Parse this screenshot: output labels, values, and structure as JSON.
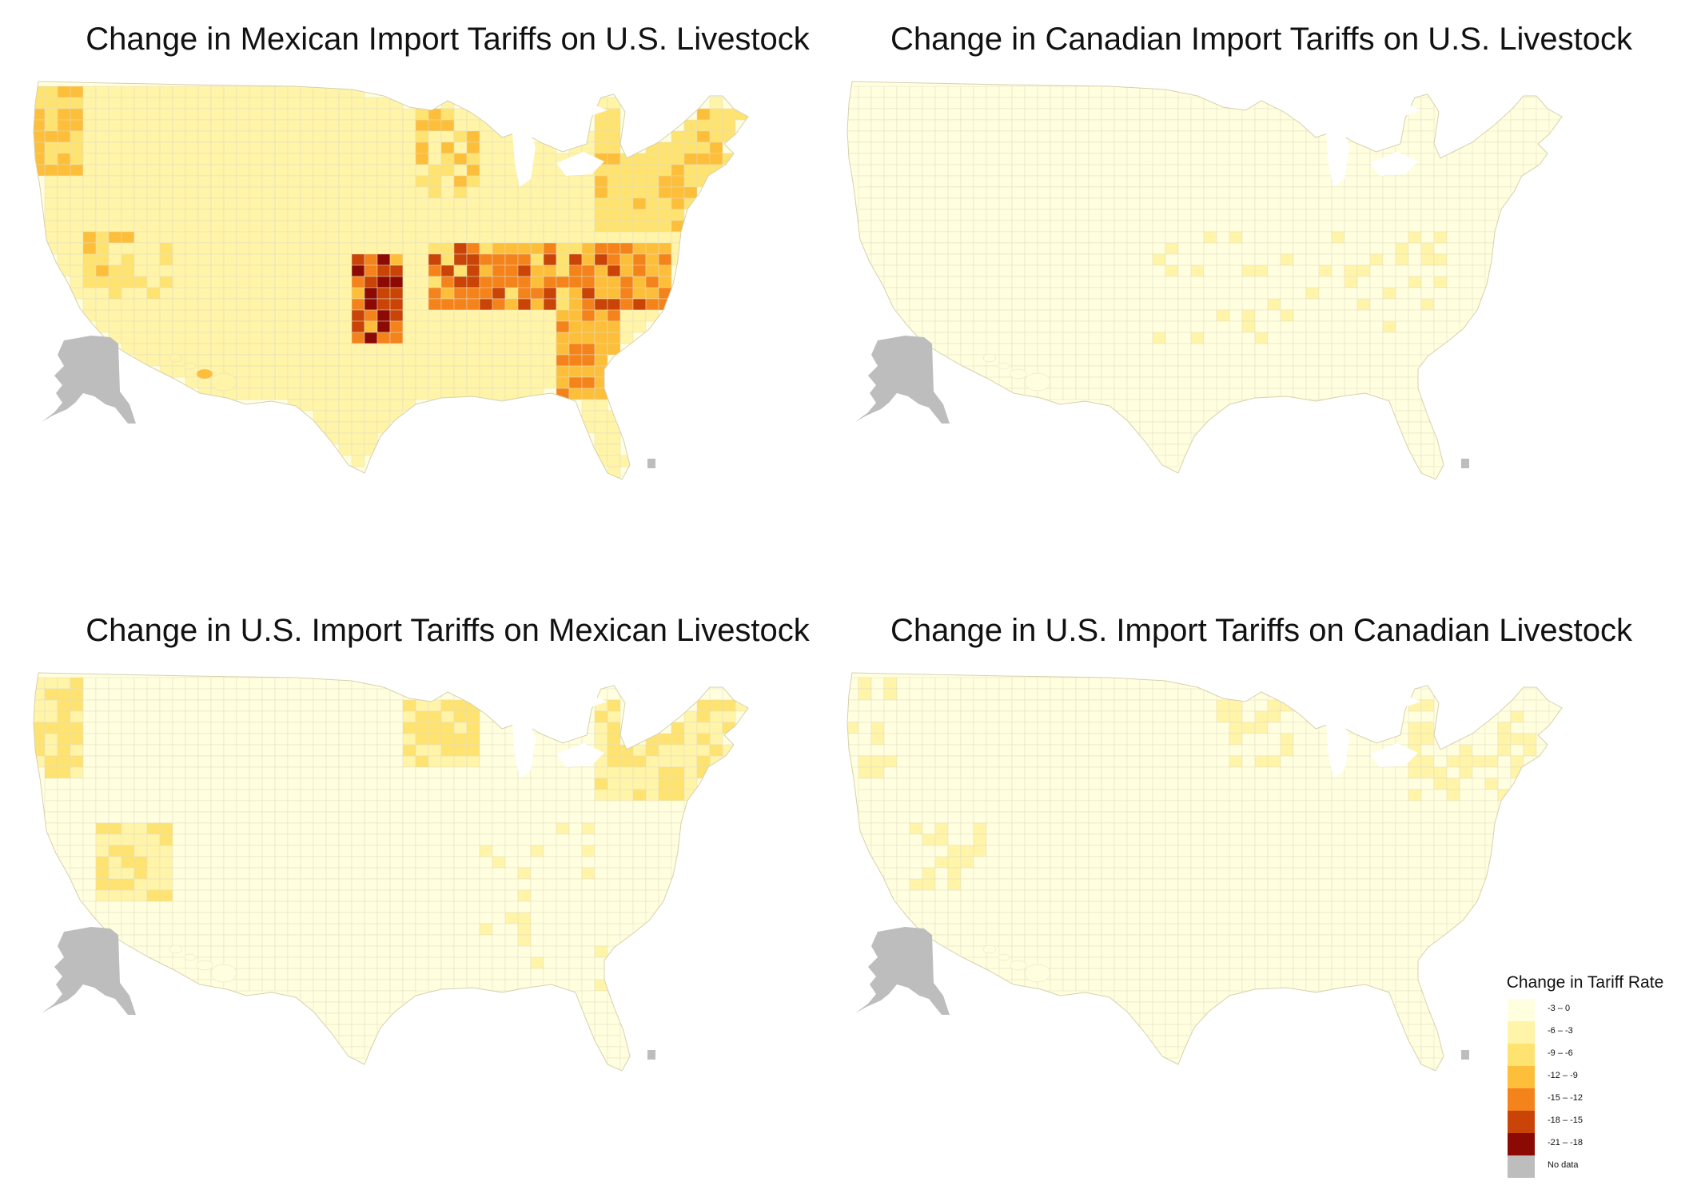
{
  "panels": [
    {
      "title": "Change in Mexican Import Tariffs on U.S. Livestock",
      "intensity": "high"
    },
    {
      "title": "Change in Canadian Import Tariffs on U.S. Livestock",
      "intensity": "low"
    },
    {
      "title": "Change in U.S. Import Tariffs on Mexican Livestock",
      "intensity": "medium-north"
    },
    {
      "title": "Change in U.S. Import Tariffs on Canadian Livestock",
      "intensity": "low-north"
    }
  ],
  "legend": {
    "title": "Change in Tariff Rate",
    "items": [
      {
        "label": "-3 – 0",
        "color": "#FFFFE0"
      },
      {
        "label": "-6 – -3",
        "color": "#FFF4A8"
      },
      {
        "label": "-9 – -6",
        "color": "#FEE371"
      },
      {
        "label": "-12 – -9",
        "color": "#FDBE3A"
      },
      {
        "label": "-15 – -12",
        "color": "#F5831B"
      },
      {
        "label": "-18 – -15",
        "color": "#C94406"
      },
      {
        "label": "-21 – -18",
        "color": "#8C0A04"
      },
      {
        "label": "No data",
        "color": "#BDBDBD"
      }
    ]
  }
}
